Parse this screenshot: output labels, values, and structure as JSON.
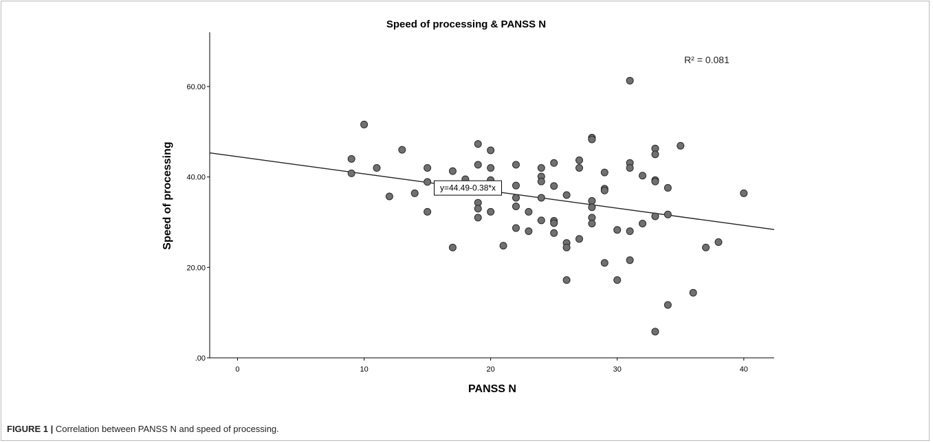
{
  "caption": {
    "label": "FIGURE 1 |",
    "text": "Correlation between PANSS N and speed of processing."
  },
  "chart_data": {
    "type": "scatter",
    "title": "Speed of processing & PANSS N",
    "xlabel": "PANSS N",
    "ylabel": "Speed of processing",
    "xlim": [
      -2.2,
      42.4
    ],
    "ylim": [
      0,
      72
    ],
    "xticks": [
      "0",
      "10",
      "20",
      "30",
      "40"
    ],
    "yticks": [
      ".00",
      "20.00",
      "40.00",
      "60.00"
    ],
    "r_squared_label": "R² = 0.081",
    "fit_line": {
      "label": "y=44.49-0.38*x",
      "intercept": 44.49,
      "slope": -0.38
    },
    "grid": false,
    "marker_color": "#707070",
    "points": [
      {
        "x": 9,
        "y": 44.0
      },
      {
        "x": 9,
        "y": 40.8
      },
      {
        "x": 10,
        "y": 51.6
      },
      {
        "x": 11,
        "y": 42.0
      },
      {
        "x": 12,
        "y": 35.7
      },
      {
        "x": 13,
        "y": 46.0
      },
      {
        "x": 14,
        "y": 36.4
      },
      {
        "x": 15,
        "y": 42.0
      },
      {
        "x": 15,
        "y": 38.9
      },
      {
        "x": 15,
        "y": 32.3
      },
      {
        "x": 17,
        "y": 41.3
      },
      {
        "x": 17,
        "y": 24.4
      },
      {
        "x": 18,
        "y": 39.5
      },
      {
        "x": 19,
        "y": 47.3
      },
      {
        "x": 19,
        "y": 42.7
      },
      {
        "x": 19,
        "y": 37.1
      },
      {
        "x": 19,
        "y": 34.3
      },
      {
        "x": 19,
        "y": 33.0
      },
      {
        "x": 19,
        "y": 31.0
      },
      {
        "x": 20,
        "y": 45.9
      },
      {
        "x": 20,
        "y": 42.0
      },
      {
        "x": 20,
        "y": 39.3
      },
      {
        "x": 20,
        "y": 32.3
      },
      {
        "x": 21,
        "y": 24.8
      },
      {
        "x": 22,
        "y": 42.7
      },
      {
        "x": 22,
        "y": 38.1
      },
      {
        "x": 22,
        "y": 35.4
      },
      {
        "x": 22,
        "y": 33.5
      },
      {
        "x": 22,
        "y": 28.7
      },
      {
        "x": 23,
        "y": 32.3
      },
      {
        "x": 23,
        "y": 28.0
      },
      {
        "x": 24,
        "y": 42.0
      },
      {
        "x": 24,
        "y": 40.1
      },
      {
        "x": 24,
        "y": 39.0
      },
      {
        "x": 24,
        "y": 35.4
      },
      {
        "x": 24,
        "y": 30.4
      },
      {
        "x": 25,
        "y": 43.1
      },
      {
        "x": 25,
        "y": 38.0
      },
      {
        "x": 25,
        "y": 30.3
      },
      {
        "x": 25,
        "y": 29.8
      },
      {
        "x": 25,
        "y": 27.6
      },
      {
        "x": 26,
        "y": 36.0
      },
      {
        "x": 26,
        "y": 25.4
      },
      {
        "x": 26,
        "y": 24.4
      },
      {
        "x": 26,
        "y": 17.2
      },
      {
        "x": 27,
        "y": 43.7
      },
      {
        "x": 27,
        "y": 42.0
      },
      {
        "x": 27,
        "y": 26.3
      },
      {
        "x": 28,
        "y": 48.7
      },
      {
        "x": 28,
        "y": 48.3
      },
      {
        "x": 28,
        "y": 34.7
      },
      {
        "x": 28,
        "y": 33.3
      },
      {
        "x": 28,
        "y": 31.0
      },
      {
        "x": 28,
        "y": 29.7
      },
      {
        "x": 29,
        "y": 41.0
      },
      {
        "x": 29,
        "y": 37.4
      },
      {
        "x": 29,
        "y": 37.0
      },
      {
        "x": 29,
        "y": 21.0
      },
      {
        "x": 30,
        "y": 28.3
      },
      {
        "x": 30,
        "y": 17.2
      },
      {
        "x": 31,
        "y": 61.3
      },
      {
        "x": 31,
        "y": 43.1
      },
      {
        "x": 31,
        "y": 42.0
      },
      {
        "x": 31,
        "y": 28.0
      },
      {
        "x": 31,
        "y": 21.6
      },
      {
        "x": 32,
        "y": 40.3
      },
      {
        "x": 32,
        "y": 29.7
      },
      {
        "x": 33,
        "y": 46.3
      },
      {
        "x": 33,
        "y": 45.0
      },
      {
        "x": 33,
        "y": 39.3
      },
      {
        "x": 33,
        "y": 39.0
      },
      {
        "x": 33,
        "y": 31.3
      },
      {
        "x": 33,
        "y": 5.8
      },
      {
        "x": 34,
        "y": 37.6
      },
      {
        "x": 34,
        "y": 31.7
      },
      {
        "x": 34,
        "y": 11.7
      },
      {
        "x": 35,
        "y": 46.9
      },
      {
        "x": 36,
        "y": 14.4
      },
      {
        "x": 37,
        "y": 24.4
      },
      {
        "x": 38,
        "y": 25.6
      },
      {
        "x": 40,
        "y": 36.4
      }
    ]
  }
}
